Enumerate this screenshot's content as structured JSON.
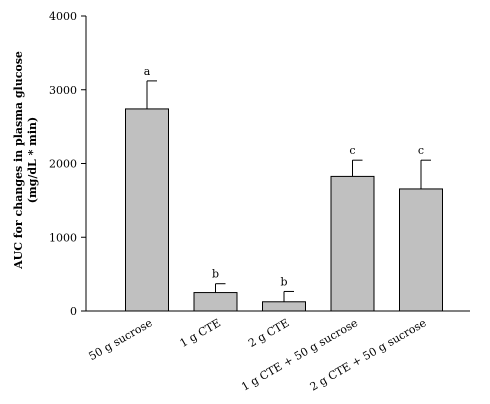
{
  "chart_data": {
    "type": "bar",
    "categories": [
      "50 g sucrose",
      "1 g CTE",
      "2 g CTE",
      "1 g CTE + 50 g sucrose",
      "2 g CTE + 50 g sucrose"
    ],
    "values": [
      2740,
      250,
      125,
      1825,
      1655
    ],
    "errors": [
      380,
      120,
      140,
      220,
      390
    ],
    "significance": [
      "a",
      "b",
      "b",
      "c",
      "c"
    ],
    "ylabel_lines": [
      "AUC for changes in plasma glucose",
      "(mg/dL * min)"
    ],
    "xlabel": "",
    "ylim": [
      0,
      4000
    ],
    "yticks": [
      0,
      1000,
      2000,
      3000,
      4000
    ],
    "bar_color": "#c0c0c0",
    "grid": false,
    "error_bars": "upper only"
  }
}
